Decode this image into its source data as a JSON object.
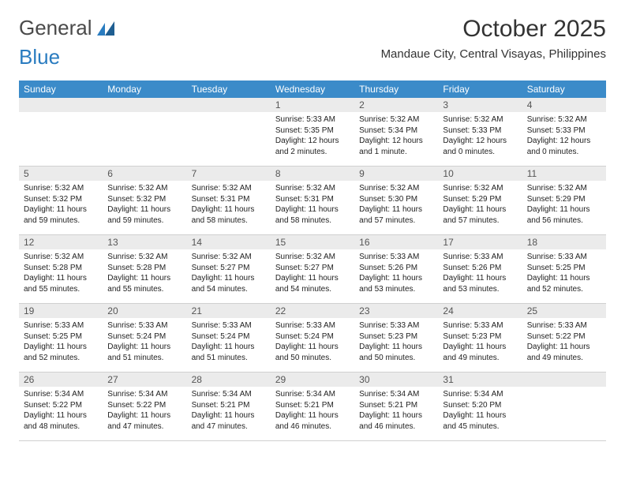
{
  "logo": {
    "text1": "General",
    "text2": "Blue"
  },
  "title": "October 2025",
  "location": "Mandaue City, Central Visayas, Philippines",
  "colors": {
    "header_bg": "#3b8bc9",
    "header_fg": "#ffffff",
    "daynum_bg": "#ebebeb",
    "daynum_fg": "#555555",
    "body_fg": "#222222",
    "logo_gray": "#4a4a4a",
    "logo_blue": "#2a7cc0",
    "border": "#d0d0d0",
    "background": "#ffffff"
  },
  "typography": {
    "title_fontsize": 30,
    "location_fontsize": 15,
    "dayheader_fontsize": 12,
    "daynum_fontsize": 12,
    "dayinfo_fontsize": 10,
    "logo_fontsize": 26
  },
  "layout": {
    "columns": 7,
    "rows": 5
  },
  "days_of_week": [
    "Sunday",
    "Monday",
    "Tuesday",
    "Wednesday",
    "Thursday",
    "Friday",
    "Saturday"
  ],
  "weeks": [
    [
      null,
      null,
      null,
      {
        "n": "1",
        "sr": "Sunrise: 5:33 AM",
        "ss": "Sunset: 5:35 PM",
        "dl": "Daylight: 12 hours and 2 minutes."
      },
      {
        "n": "2",
        "sr": "Sunrise: 5:32 AM",
        "ss": "Sunset: 5:34 PM",
        "dl": "Daylight: 12 hours and 1 minute."
      },
      {
        "n": "3",
        "sr": "Sunrise: 5:32 AM",
        "ss": "Sunset: 5:33 PM",
        "dl": "Daylight: 12 hours and 0 minutes."
      },
      {
        "n": "4",
        "sr": "Sunrise: 5:32 AM",
        "ss": "Sunset: 5:33 PM",
        "dl": "Daylight: 12 hours and 0 minutes."
      }
    ],
    [
      {
        "n": "5",
        "sr": "Sunrise: 5:32 AM",
        "ss": "Sunset: 5:32 PM",
        "dl": "Daylight: 11 hours and 59 minutes."
      },
      {
        "n": "6",
        "sr": "Sunrise: 5:32 AM",
        "ss": "Sunset: 5:32 PM",
        "dl": "Daylight: 11 hours and 59 minutes."
      },
      {
        "n": "7",
        "sr": "Sunrise: 5:32 AM",
        "ss": "Sunset: 5:31 PM",
        "dl": "Daylight: 11 hours and 58 minutes."
      },
      {
        "n": "8",
        "sr": "Sunrise: 5:32 AM",
        "ss": "Sunset: 5:31 PM",
        "dl": "Daylight: 11 hours and 58 minutes."
      },
      {
        "n": "9",
        "sr": "Sunrise: 5:32 AM",
        "ss": "Sunset: 5:30 PM",
        "dl": "Daylight: 11 hours and 57 minutes."
      },
      {
        "n": "10",
        "sr": "Sunrise: 5:32 AM",
        "ss": "Sunset: 5:29 PM",
        "dl": "Daylight: 11 hours and 57 minutes."
      },
      {
        "n": "11",
        "sr": "Sunrise: 5:32 AM",
        "ss": "Sunset: 5:29 PM",
        "dl": "Daylight: 11 hours and 56 minutes."
      }
    ],
    [
      {
        "n": "12",
        "sr": "Sunrise: 5:32 AM",
        "ss": "Sunset: 5:28 PM",
        "dl": "Daylight: 11 hours and 55 minutes."
      },
      {
        "n": "13",
        "sr": "Sunrise: 5:32 AM",
        "ss": "Sunset: 5:28 PM",
        "dl": "Daylight: 11 hours and 55 minutes."
      },
      {
        "n": "14",
        "sr": "Sunrise: 5:32 AM",
        "ss": "Sunset: 5:27 PM",
        "dl": "Daylight: 11 hours and 54 minutes."
      },
      {
        "n": "15",
        "sr": "Sunrise: 5:32 AM",
        "ss": "Sunset: 5:27 PM",
        "dl": "Daylight: 11 hours and 54 minutes."
      },
      {
        "n": "16",
        "sr": "Sunrise: 5:33 AM",
        "ss": "Sunset: 5:26 PM",
        "dl": "Daylight: 11 hours and 53 minutes."
      },
      {
        "n": "17",
        "sr": "Sunrise: 5:33 AM",
        "ss": "Sunset: 5:26 PM",
        "dl": "Daylight: 11 hours and 53 minutes."
      },
      {
        "n": "18",
        "sr": "Sunrise: 5:33 AM",
        "ss": "Sunset: 5:25 PM",
        "dl": "Daylight: 11 hours and 52 minutes."
      }
    ],
    [
      {
        "n": "19",
        "sr": "Sunrise: 5:33 AM",
        "ss": "Sunset: 5:25 PM",
        "dl": "Daylight: 11 hours and 52 minutes."
      },
      {
        "n": "20",
        "sr": "Sunrise: 5:33 AM",
        "ss": "Sunset: 5:24 PM",
        "dl": "Daylight: 11 hours and 51 minutes."
      },
      {
        "n": "21",
        "sr": "Sunrise: 5:33 AM",
        "ss": "Sunset: 5:24 PM",
        "dl": "Daylight: 11 hours and 51 minutes."
      },
      {
        "n": "22",
        "sr": "Sunrise: 5:33 AM",
        "ss": "Sunset: 5:24 PM",
        "dl": "Daylight: 11 hours and 50 minutes."
      },
      {
        "n": "23",
        "sr": "Sunrise: 5:33 AM",
        "ss": "Sunset: 5:23 PM",
        "dl": "Daylight: 11 hours and 50 minutes."
      },
      {
        "n": "24",
        "sr": "Sunrise: 5:33 AM",
        "ss": "Sunset: 5:23 PM",
        "dl": "Daylight: 11 hours and 49 minutes."
      },
      {
        "n": "25",
        "sr": "Sunrise: 5:33 AM",
        "ss": "Sunset: 5:22 PM",
        "dl": "Daylight: 11 hours and 49 minutes."
      }
    ],
    [
      {
        "n": "26",
        "sr": "Sunrise: 5:34 AM",
        "ss": "Sunset: 5:22 PM",
        "dl": "Daylight: 11 hours and 48 minutes."
      },
      {
        "n": "27",
        "sr": "Sunrise: 5:34 AM",
        "ss": "Sunset: 5:22 PM",
        "dl": "Daylight: 11 hours and 47 minutes."
      },
      {
        "n": "28",
        "sr": "Sunrise: 5:34 AM",
        "ss": "Sunset: 5:21 PM",
        "dl": "Daylight: 11 hours and 47 minutes."
      },
      {
        "n": "29",
        "sr": "Sunrise: 5:34 AM",
        "ss": "Sunset: 5:21 PM",
        "dl": "Daylight: 11 hours and 46 minutes."
      },
      {
        "n": "30",
        "sr": "Sunrise: 5:34 AM",
        "ss": "Sunset: 5:21 PM",
        "dl": "Daylight: 11 hours and 46 minutes."
      },
      {
        "n": "31",
        "sr": "Sunrise: 5:34 AM",
        "ss": "Sunset: 5:20 PM",
        "dl": "Daylight: 11 hours and 45 minutes."
      },
      null
    ]
  ]
}
